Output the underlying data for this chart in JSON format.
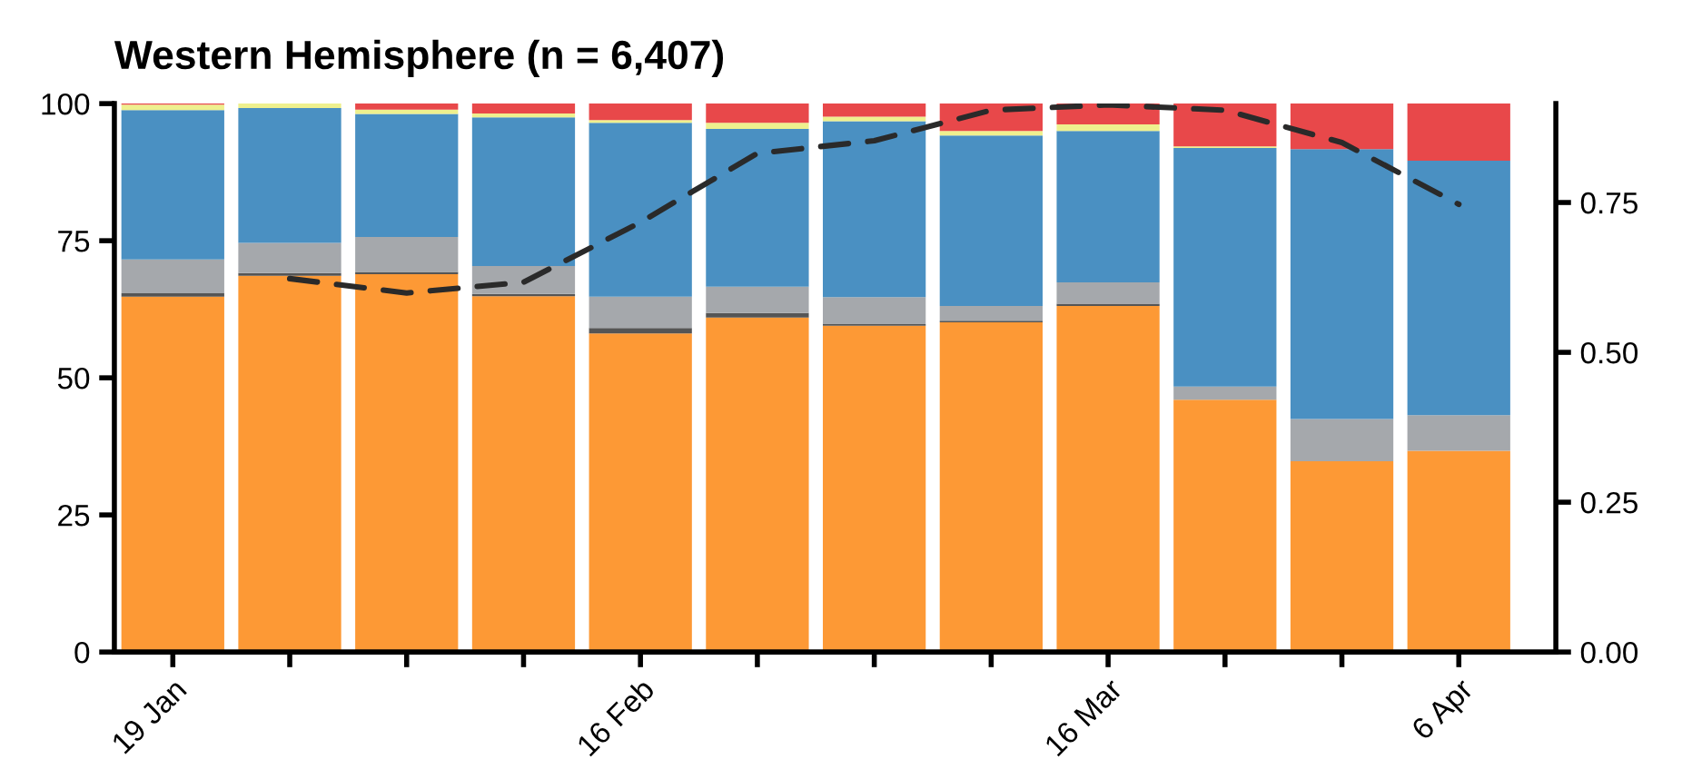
{
  "chart_data": {
    "type": "bar",
    "title": "Western Hemisphere (n = 6,407)",
    "stacked": true,
    "categories": [
      "19 Jan",
      null,
      null,
      null,
      "16 Feb",
      null,
      null,
      null,
      "16 Mar",
      null,
      null,
      "6 Apr"
    ],
    "series": [
      {
        "color": "#fd9935",
        "values": [
          64.8,
          68.6,
          68.9,
          64.9,
          58.1,
          61.0,
          59.5,
          60.1,
          63.1,
          46.0,
          34.8,
          36.7
        ]
      },
      {
        "color": "#555555",
        "values": [
          0.6,
          0.5,
          0.4,
          0.4,
          1.0,
          0.8,
          0.3,
          0.3,
          0.4,
          0,
          0,
          0
        ]
      },
      {
        "color": "#a5a8ac",
        "values": [
          6.2,
          5.5,
          6.4,
          5.1,
          5.7,
          4.8,
          4.9,
          2.7,
          3.9,
          2.4,
          7.7,
          6.5
        ]
      },
      {
        "color": "#4a90c2",
        "values": [
          27.2,
          24.6,
          22.4,
          27.1,
          31.7,
          28.8,
          32.1,
          31.1,
          27.6,
          43.5,
          49.2,
          46.4
        ]
      },
      {
        "color": "#eef08e",
        "values": [
          1.0,
          0.8,
          0.8,
          0.7,
          0.5,
          1.1,
          0.8,
          0.8,
          1.2,
          0.3,
          0,
          0
        ]
      },
      {
        "color": "#e8484a",
        "values": [
          0.2,
          0,
          1.1,
          1.8,
          3.0,
          3.5,
          2.4,
          5.0,
          3.8,
          7.8,
          8.3,
          10.4
        ]
      },
      {
        "type": "line",
        "axis": "y2",
        "color": "#2a2a2a",
        "line_style": "dashed",
        "values": [
          null,
          0.623,
          0.599,
          0.617,
          0.717,
          0.832,
          0.853,
          0.904,
          0.913,
          0.904,
          0.85,
          0.747
        ]
      }
    ],
    "ylim": [
      0,
      100
    ],
    "yticks": [
      0,
      25,
      50,
      75,
      100
    ],
    "y2lim": [
      0,
      0.915
    ],
    "y2ticks": [
      {
        "value": 0,
        "label": "0.00"
      },
      {
        "value": 0.25,
        "label": "0.25"
      },
      {
        "value": 0.5,
        "label": "0.50"
      },
      {
        "value": 0.75,
        "label": "0.75"
      }
    ],
    "grid": false,
    "legend": false
  }
}
